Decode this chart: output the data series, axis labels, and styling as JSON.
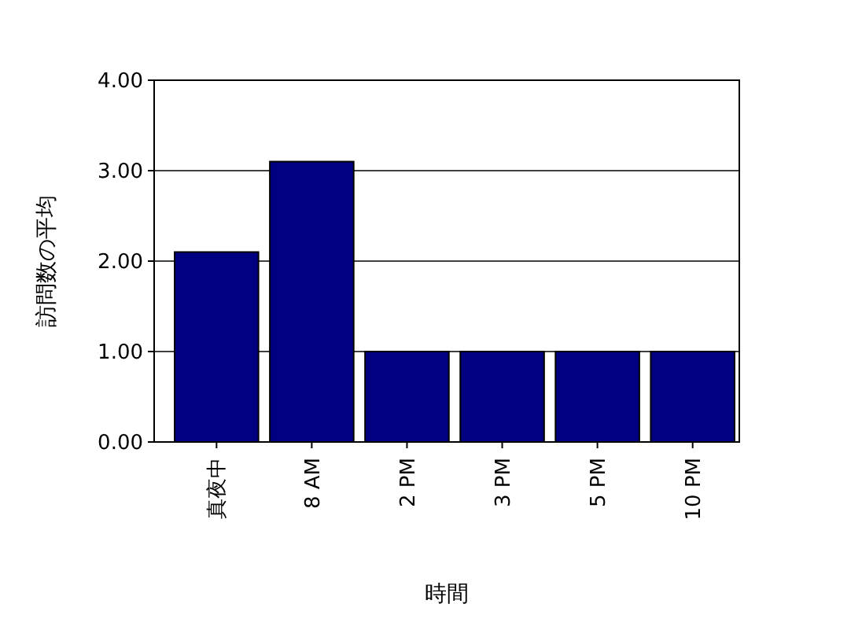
{
  "chart_data": {
    "type": "bar",
    "xlabel": "時間",
    "ylabel": "訪問数の平均",
    "categories": [
      "真夜中",
      "8 AM",
      "2 PM",
      "3 PM",
      "5 PM",
      "10 PM"
    ],
    "values": [
      2.1,
      3.1,
      1.0,
      1.0,
      1.0,
      1.0
    ],
    "color": "#000080",
    "ylim": [
      0,
      4
    ],
    "yticks": [
      {
        "value": 0,
        "label": "0.00"
      },
      {
        "value": 1,
        "label": "1.00"
      },
      {
        "value": 2,
        "label": "2.00"
      },
      {
        "value": 3,
        "label": "3.00"
      },
      {
        "value": 4,
        "label": "4.00"
      }
    ],
    "grid": "y"
  }
}
